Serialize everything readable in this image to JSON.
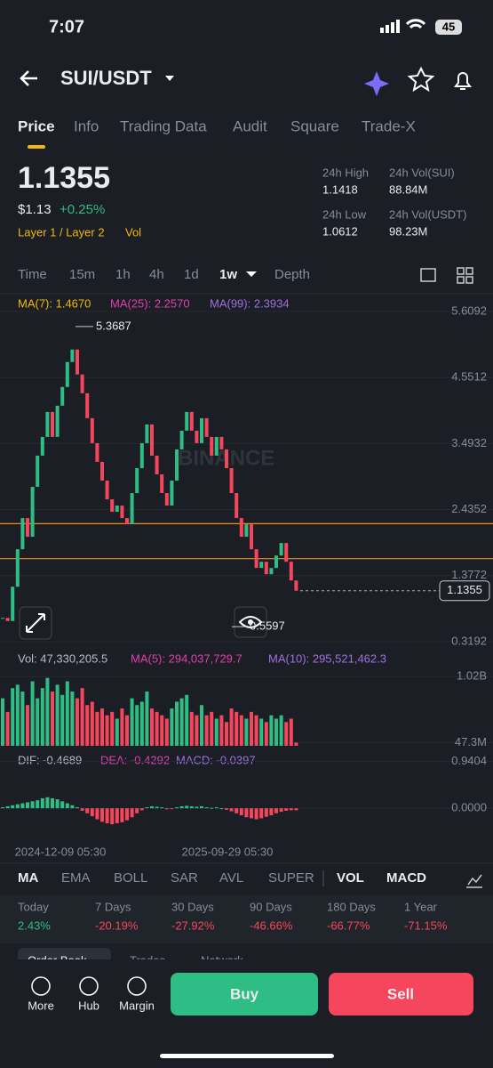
{
  "status": {
    "time": "7:07",
    "battery": "45"
  },
  "header": {
    "pair": "SUI/USDT"
  },
  "tabs": [
    "Price",
    "Info",
    "Trading Data",
    "Audit",
    "Square",
    "Trade-X"
  ],
  "price": {
    "last": "1.1355",
    "usd": "$1.13",
    "change": "+0.25%",
    "tags": [
      "Layer 1 / Layer 2",
      "Vol"
    ]
  },
  "stats": [
    {
      "label": "24h High",
      "value": "1.1418"
    },
    {
      "label": "24h Vol(SUI)",
      "value": "88.84M"
    },
    {
      "label": "24h Low",
      "value": "1.0612"
    },
    {
      "label": "24h Vol(USDT)",
      "value": "98.23M"
    }
  ],
  "intervals": [
    "Time",
    "15m",
    "1h",
    "4h",
    "1d",
    "1w",
    "Depth"
  ],
  "chart_data": [
    {
      "type": "candlestick",
      "legend": [
        "MA(7): 1.4670",
        "MA(25): 2.2570",
        "MA(99): 2.3934"
      ],
      "ylim": [
        0.3192,
        5.6092
      ],
      "yticks": [
        5.6092,
        4.5512,
        3.4932,
        2.4352,
        1.3772,
        0.3192
      ],
      "closes": [
        0.7,
        0.65,
        1.2,
        1.8,
        2.3,
        2.0,
        2.8,
        3.3,
        3.6,
        4.0,
        3.6,
        4.1,
        4.4,
        4.8,
        5.0,
        4.6,
        4.3,
        3.9,
        3.5,
        3.2,
        2.9,
        2.6,
        2.4,
        2.5,
        2.3,
        2.2,
        2.7,
        3.1,
        3.5,
        3.8,
        3.3,
        3.0,
        2.7,
        2.5,
        2.9,
        3.4,
        3.7,
        4.0,
        3.7,
        3.5,
        3.9,
        3.6,
        3.3,
        3.6,
        3.4,
        3.1,
        2.7,
        2.3,
        2.0,
        2.2,
        1.8,
        1.5,
        1.6,
        1.4,
        1.5,
        1.7,
        1.9,
        1.6,
        1.3,
        1.1355
      ],
      "levels": [
        2.21,
        1.65
      ],
      "annotations": {
        "high": "5.3687",
        "low": "0.5597",
        "current": "1.1355"
      },
      "high": 5.3687,
      "low": 0.5597,
      "current": 1.1355
    },
    {
      "type": "bar",
      "legend": [
        "Vol: 47,330,205.5",
        "MA(5): 294,037,729.7",
        "MA(10): 295,521,462.3"
      ],
      "ylim": [
        0,
        1180
      ],
      "yticks": [
        {
          "value": 1020,
          "label": "1.02B"
        },
        {
          "value": 47.3,
          "label": "47.3M"
        }
      ],
      "values": [
        700,
        500,
        850,
        900,
        800,
        600,
        950,
        700,
        850,
        1000,
        800,
        900,
        750,
        950,
        800,
        700,
        850,
        600,
        650,
        500,
        550,
        450,
        500,
        400,
        550,
        450,
        700,
        600,
        650,
        800,
        550,
        500,
        450,
        400,
        550,
        650,
        700,
        750,
        500,
        450,
        600,
        450,
        500,
        400,
        450,
        350,
        550,
        500,
        450,
        400,
        500,
        450,
        400,
        350,
        450,
        400,
        450,
        350,
        400,
        47.3
      ]
    },
    {
      "type": "bar",
      "legend": [
        "DIF: -0.4689",
        "DEA: -0.4292",
        "MACD: -0.0397"
      ],
      "ylim": [
        -0.62,
        1.0
      ],
      "yticks": [
        0.9404,
        {
          "value": 0,
          "label": "0.0000"
        }
      ],
      "values": [
        0.02,
        0.04,
        0.06,
        0.08,
        0.1,
        0.12,
        0.14,
        0.16,
        0.2,
        0.22,
        0.2,
        0.18,
        0.14,
        0.1,
        0.06,
        0.02,
        -0.05,
        -0.1,
        -0.16,
        -0.22,
        -0.27,
        -0.3,
        -0.32,
        -0.3,
        -0.28,
        -0.24,
        -0.18,
        -0.1,
        -0.04,
        0.02,
        0.04,
        0.03,
        0.02,
        -0.02,
        -0.01,
        0.02,
        0.04,
        0.05,
        0.04,
        0.03,
        0.04,
        0.02,
        0.01,
        0.02,
        0.0,
        -0.03,
        -0.06,
        -0.1,
        -0.14,
        -0.18,
        -0.2,
        -0.22,
        -0.2,
        -0.17,
        -0.14,
        -0.1,
        -0.07,
        -0.05,
        -0.04,
        -0.0397
      ]
    }
  ],
  "dates": [
    "2024-12-09 05:30",
    "2025-09-29 05:30"
  ],
  "indicators": [
    "MA",
    "EMA",
    "BOLL",
    "SAR",
    "AVL",
    "SUPER",
    "VOL",
    "MACD"
  ],
  "performance": [
    {
      "label": "Today",
      "value": "2.43%"
    },
    {
      "label": "7 Days",
      "value": "-20.19%"
    },
    {
      "label": "30 Days",
      "value": "-27.92%"
    },
    {
      "label": "90 Days",
      "value": "-46.66%"
    },
    {
      "label": "180 Days",
      "value": "-66.77%"
    },
    {
      "label": "1 Year",
      "value": "-71.15%"
    }
  ],
  "subtabs": [
    "Order Book",
    "Trades",
    "Network"
  ],
  "nav": [
    "More",
    "Hub",
    "Margin"
  ],
  "actions": {
    "buy": "Buy",
    "sell": "Sell"
  }
}
